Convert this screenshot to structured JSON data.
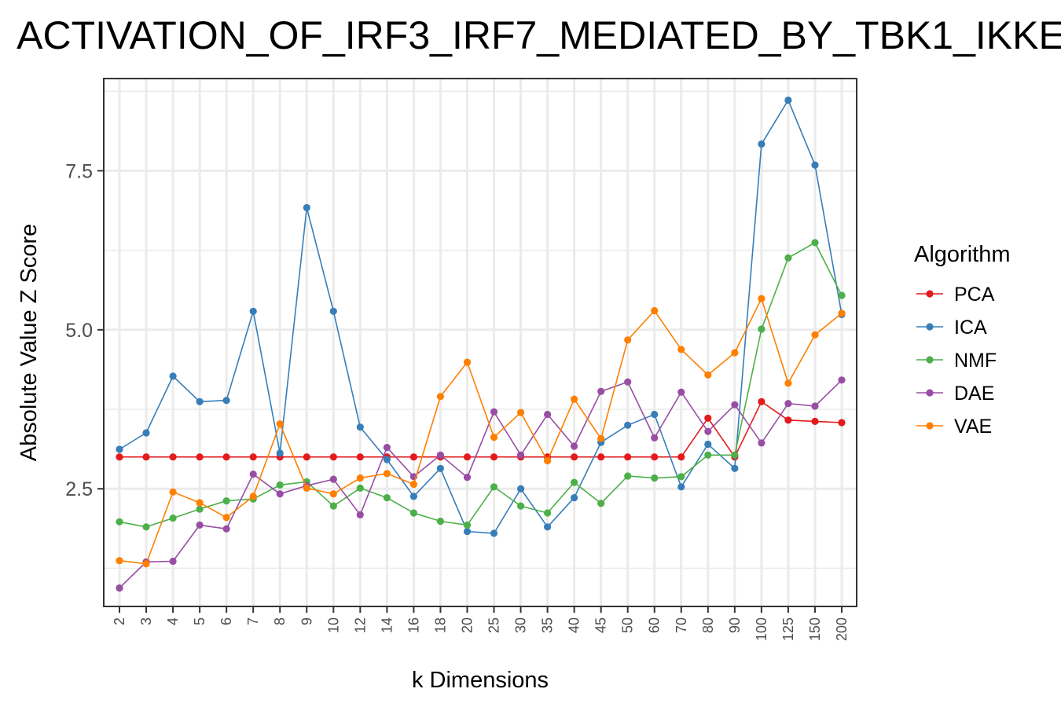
{
  "chart_data": {
    "type": "line",
    "title": "ACTIVATION_OF_IRF3_IRF7_MEDIATED_BY_TBK1_IKKE",
    "xlabel": "k Dimensions",
    "ylabel": "Absolute Value Z Score",
    "categories": [
      "2",
      "3",
      "4",
      "5",
      "6",
      "7",
      "8",
      "9",
      "10",
      "12",
      "14",
      "16",
      "18",
      "20",
      "25",
      "30",
      "35",
      "40",
      "45",
      "50",
      "60",
      "70",
      "80",
      "90",
      "100",
      "125",
      "150",
      "200"
    ],
    "y_ticks": [
      2.5,
      5.0,
      7.5
    ],
    "y_tick_labels": [
      "2.5",
      "5.0",
      "7.5"
    ],
    "ylim": [
      0.65,
      8.95
    ],
    "grid": true,
    "legend_title": "Algorithm",
    "legend_position": "right",
    "series": [
      {
        "name": "PCA",
        "color": "#e41a1c",
        "values": [
          3.0,
          3.0,
          3.0,
          3.0,
          3.0,
          3.0,
          3.0,
          3.0,
          3.0,
          3.0,
          3.0,
          3.0,
          3.0,
          3.0,
          3.0,
          3.0,
          3.0,
          3.0,
          3.0,
          3.0,
          3.0,
          3.0,
          3.61,
          3.0,
          3.87,
          3.58,
          3.56,
          3.54
        ]
      },
      {
        "name": "ICA",
        "color": "#377eb8",
        "values": [
          3.12,
          3.38,
          4.27,
          3.87,
          3.89,
          5.29,
          3.06,
          6.92,
          5.29,
          3.47,
          2.96,
          2.38,
          2.82,
          1.83,
          1.8,
          2.5,
          1.9,
          2.36,
          3.23,
          3.5,
          3.67,
          2.53,
          3.2,
          2.82,
          7.92,
          8.61,
          7.59,
          5.24
        ]
      },
      {
        "name": "NMF",
        "color": "#4daf4a",
        "values": [
          1.98,
          1.9,
          2.04,
          2.18,
          2.31,
          2.34,
          2.56,
          2.61,
          2.23,
          2.51,
          2.36,
          2.12,
          1.99,
          1.93,
          2.53,
          2.23,
          2.12,
          2.6,
          2.27,
          2.7,
          2.67,
          2.69,
          3.03,
          3.03,
          5.01,
          6.13,
          6.37,
          5.54
        ]
      },
      {
        "name": "DAE",
        "color": "#984ea3",
        "values": [
          0.94,
          1.35,
          1.36,
          1.93,
          1.87,
          2.73,
          2.42,
          2.55,
          2.65,
          2.09,
          3.15,
          2.69,
          3.03,
          2.68,
          3.71,
          3.03,
          3.67,
          3.17,
          4.03,
          4.18,
          3.3,
          4.02,
          3.4,
          3.82,
          3.22,
          3.84,
          3.8,
          4.21
        ]
      },
      {
        "name": "VAE",
        "color": "#ff7f00",
        "values": [
          1.37,
          1.32,
          2.45,
          2.28,
          2.05,
          2.38,
          3.52,
          2.51,
          2.42,
          2.67,
          2.74,
          2.57,
          3.95,
          4.49,
          3.31,
          3.7,
          2.94,
          3.91,
          3.29,
          4.84,
          5.3,
          4.69,
          4.29,
          4.64,
          5.49,
          4.16,
          4.92,
          5.26
        ]
      }
    ]
  }
}
